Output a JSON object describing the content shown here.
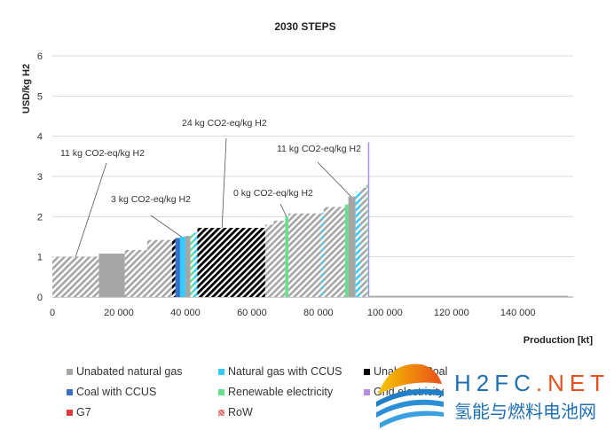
{
  "chart_data": {
    "type": "bar",
    "subtype": "supply-cost-curve",
    "title": "2030 STEPS",
    "xlabel": "Production [kt]",
    "ylabel": "USD/kg H2",
    "xlim": [
      0,
      155000
    ],
    "ylim": [
      0,
      6
    ],
    "xticks": [
      0,
      20000,
      40000,
      60000,
      80000,
      100000,
      120000,
      140000
    ],
    "xtick_labels": [
      "0",
      "20 000",
      "40 000",
      "60 000",
      "80 000",
      "100 000",
      "120 000",
      "140 000"
    ],
    "yticks": [
      0,
      1,
      2,
      3,
      4,
      5,
      6
    ],
    "grid": "horizontal",
    "legend_position": "bottom",
    "legend": [
      {
        "label": "Unabated natural gas",
        "color": "#a6a6a6"
      },
      {
        "label": "Natural gas with CCUS",
        "color": "#33ccff"
      },
      {
        "label": "Unabated Coal",
        "color": "#000000"
      },
      {
        "label": "Coal with CCUS",
        "color": "#3a6fc8"
      },
      {
        "label": "Renewable electricity",
        "color": "#66e08c"
      },
      {
        "label": "Grid electricity",
        "color": "#b48ce6"
      },
      {
        "label": "G7",
        "color": "#e03c3c"
      },
      {
        "label": "RoW",
        "color": "#e06060",
        "pattern": "hatched"
      }
    ],
    "steps": [
      {
        "x0": 0,
        "x1": 14000,
        "y": 1.0,
        "source": "Unabated natural gas",
        "region": "RoW"
      },
      {
        "x0": 14000,
        "x1": 21800,
        "y": 1.08,
        "source": "Unabated natural gas",
        "region": "G7"
      },
      {
        "x0": 21800,
        "x1": 28500,
        "y": 1.17,
        "source": "Unabated natural gas",
        "region": "RoW"
      },
      {
        "x0": 28500,
        "x1": 36000,
        "y": 1.42,
        "source": "Unabated natural gas",
        "region": "RoW"
      },
      {
        "x0": 36000,
        "x1": 37000,
        "y": 1.45,
        "source": "Unabated Coal",
        "region": "RoW"
      },
      {
        "x0": 37000,
        "x1": 38400,
        "y": 1.47,
        "source": "Coal with CCUS",
        "region": "G7"
      },
      {
        "x0": 38400,
        "x1": 40000,
        "y": 1.5,
        "source": "Natural gas with CCUS",
        "region": "G7"
      },
      {
        "x0": 40000,
        "x1": 41500,
        "y": 1.52,
        "source": "Unabated natural gas",
        "region": "G7"
      },
      {
        "x0": 41500,
        "x1": 42500,
        "y": 1.56,
        "source": "Renewable electricity",
        "region": "RoW"
      },
      {
        "x0": 42500,
        "x1": 43600,
        "y": 1.6,
        "source": "Natural gas with CCUS",
        "region": "RoW"
      },
      {
        "x0": 43600,
        "x1": 64000,
        "y": 1.72,
        "source": "Unabated Coal",
        "region": "RoW"
      },
      {
        "x0": 64000,
        "x1": 66500,
        "y": 1.8,
        "source": "Unabated natural gas",
        "region": "RoW"
      },
      {
        "x0": 66500,
        "x1": 70000,
        "y": 1.9,
        "source": "Unabated natural gas",
        "region": "RoW"
      },
      {
        "x0": 70000,
        "x1": 71000,
        "y": 2.0,
        "source": "Renewable electricity",
        "region": "G7"
      },
      {
        "x0": 71000,
        "x1": 81000,
        "y": 2.08,
        "source": "Unabated natural gas",
        "region": "RoW"
      },
      {
        "x0": 81000,
        "x1": 81600,
        "y": 2.1,
        "source": "Natural gas with CCUS",
        "region": "RoW"
      },
      {
        "x0": 81600,
        "x1": 88000,
        "y": 2.24,
        "source": "Unabated natural gas",
        "region": "RoW"
      },
      {
        "x0": 88000,
        "x1": 89000,
        "y": 2.3,
        "source": "Renewable electricity",
        "region": "G7"
      },
      {
        "x0": 89000,
        "x1": 91200,
        "y": 2.5,
        "source": "Unabated natural gas",
        "region": "G7"
      },
      {
        "x0": 91200,
        "x1": 92600,
        "y": 2.62,
        "source": "Natural gas with CCUS",
        "region": "RoW"
      },
      {
        "x0": 92600,
        "x1": 94400,
        "y": 2.72,
        "source": "Unabated natural gas",
        "region": "RoW"
      },
      {
        "x0": 94400,
        "x1": 94900,
        "y": 2.82,
        "source": "Renewable electricity",
        "region": "RoW"
      },
      {
        "x0": 94900,
        "x1": 95300,
        "y": 3.85,
        "source": "Grid electricity",
        "region": "G7"
      }
    ],
    "annotations": [
      {
        "text": "11 kg CO2-eq/kg H2",
        "x": 7000,
        "y": 1.0
      },
      {
        "text": "3 kg CO2-eq/kg H2",
        "x": 38800,
        "y": 1.5
      },
      {
        "text": "24 kg CO2-eq/kg H2",
        "x": 51000,
        "y": 1.72
      },
      {
        "text": "0 kg CO2-eq/kg H2",
        "x": 70400,
        "y": 2.0
      },
      {
        "text": "11 kg CO2-eq/kg H2",
        "x": 89800,
        "y": 2.5
      }
    ]
  },
  "watermark": {
    "latin": "H2FC.NET",
    "chinese": "氢能与燃料电池网"
  }
}
